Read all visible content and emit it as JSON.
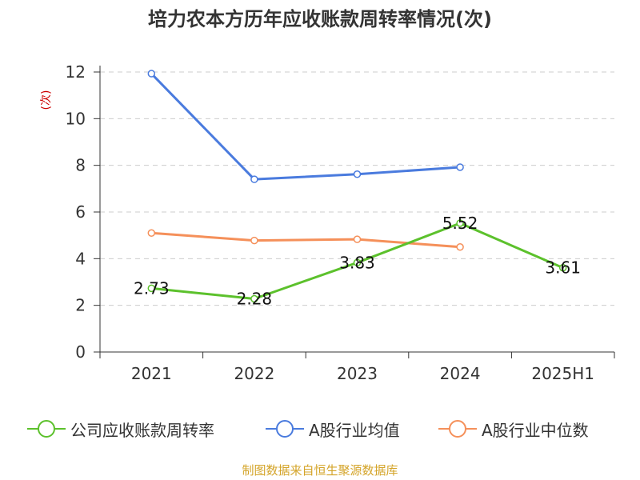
{
  "title": "培力农本方历年应收账款周转率情况(次)",
  "source": "制图数据来自恒生聚源数据库",
  "chart_data": {
    "type": "line",
    "title": "培力农本方历年应收账款周转率情况(次)",
    "ylabel": "(次)",
    "xlabel": "",
    "categories": [
      "2021",
      "2022",
      "2023",
      "2024",
      "2025H1"
    ],
    "ylim": [
      0,
      12
    ],
    "yticks": [
      0,
      2,
      4,
      6,
      8,
      10,
      12
    ],
    "grid": "horizontal dashed",
    "legend_position": "bottom",
    "series": [
      {
        "name": "公司应收账款周转率",
        "color": "#5cc12c",
        "values": [
          2.73,
          2.28,
          3.83,
          5.52,
          3.61
        ],
        "labels": [
          "2.73",
          "2.28",
          "3.83",
          "5.52",
          "3.61"
        ]
      },
      {
        "name": "A股行业均值",
        "color": "#4a7bde",
        "values": [
          11.93,
          7.4,
          7.62,
          7.92,
          null
        ]
      },
      {
        "name": "A股行业中位数",
        "color": "#f5905a",
        "values": [
          5.1,
          4.78,
          4.83,
          4.5,
          null
        ]
      }
    ]
  }
}
